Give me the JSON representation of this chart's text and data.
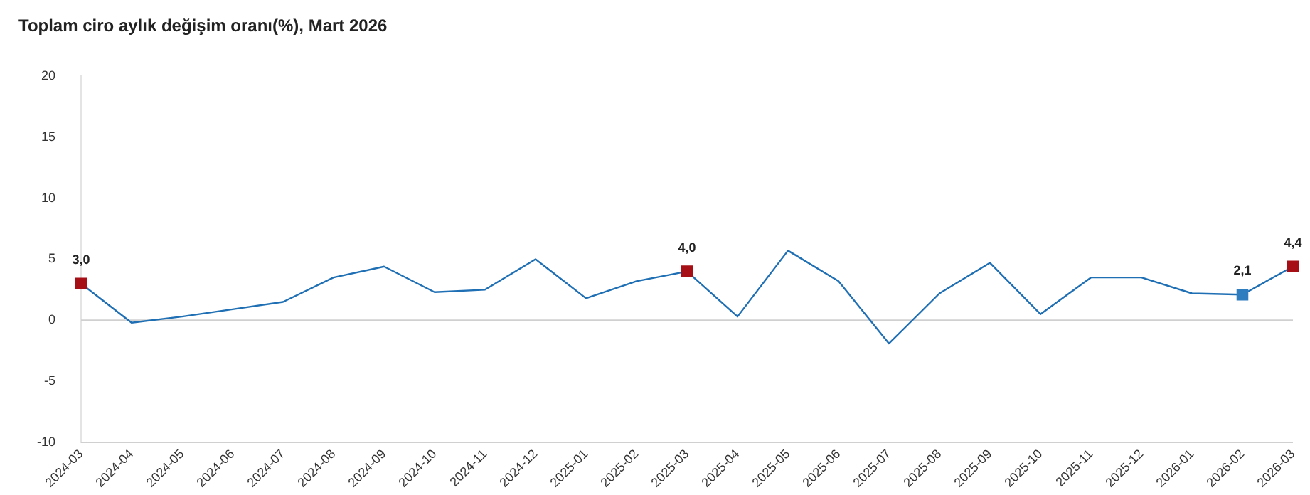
{
  "chart_data": {
    "type": "line",
    "title": "Toplam ciro aylık değişim oranı(%), Mart 2026",
    "categories": [
      "2024-03",
      "2024-04",
      "2024-05",
      "2024-06",
      "2024-07",
      "2024-08",
      "2024-09",
      "2024-10",
      "2024-11",
      "2024-12",
      "2025-01",
      "2025-02",
      "2025-03",
      "2025-04",
      "2025-05",
      "2025-06",
      "2025-07",
      "2025-08",
      "2025-09",
      "2025-10",
      "2025-11",
      "2025-12",
      "2026-01",
      "2026-02",
      "2026-03"
    ],
    "series": [
      {
        "color": "#1f6fb4",
        "values": [
          3.0,
          -0.2,
          0.3,
          0.9,
          1.5,
          3.5,
          4.4,
          2.3,
          2.5,
          5.0,
          1.8,
          3.2,
          4.0,
          0.3,
          5.7,
          3.2,
          -1.9,
          2.2,
          4.7,
          0.5,
          3.5,
          3.5,
          2.2,
          2.1,
          4.4
        ],
        "colors": [
          "#a50f15",
          null,
          null,
          null,
          null,
          null,
          null,
          null,
          null,
          null,
          null,
          null,
          "#a50f15",
          null,
          null,
          null,
          null,
          null,
          null,
          null,
          null,
          null,
          null,
          "#2e7dbf",
          "#a50f15"
        ],
        "value_labels": [
          "3,0",
          null,
          null,
          null,
          null,
          null,
          null,
          null,
          null,
          null,
          null,
          null,
          "4,0",
          null,
          null,
          null,
          null,
          null,
          null,
          null,
          null,
          null,
          null,
          "2,1",
          "4,4"
        ]
      }
    ],
    "ylim": [
      -10,
      20
    ],
    "yticks": [
      -10,
      -5,
      0,
      5,
      10,
      15,
      20
    ],
    "grid": false,
    "legend": false,
    "line_style": "solid",
    "ref_lines": [
      {
        "axis": "y",
        "value": 0,
        "label": null,
        "color": "#d0d0d0"
      }
    ]
  }
}
